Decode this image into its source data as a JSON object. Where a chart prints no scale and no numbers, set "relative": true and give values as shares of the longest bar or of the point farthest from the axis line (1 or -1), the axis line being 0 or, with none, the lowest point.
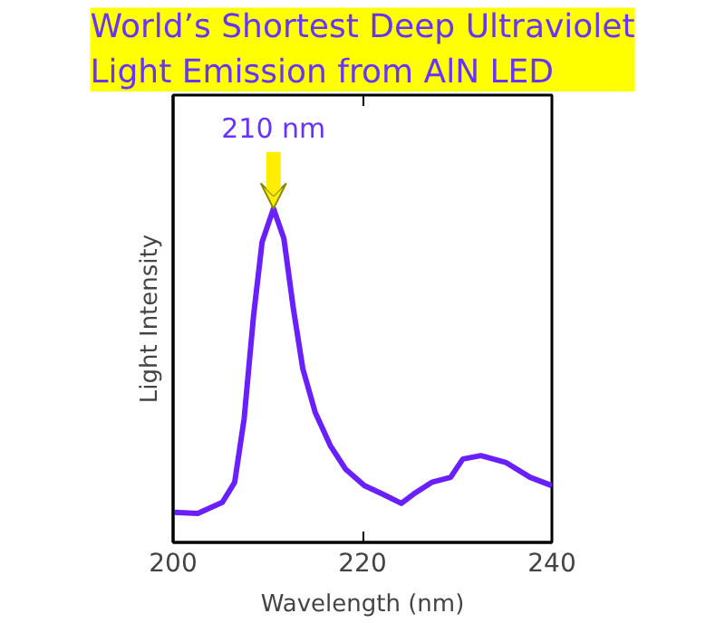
{
  "chart_data": {
    "type": "line",
    "title": "World’s Shortest Deep Ultraviolet Light Emission from AlN LED",
    "xlabel": "Wavelength (nm)",
    "ylabel": "Light Intensity",
    "relative": true,
    "x": [
      200,
      202.6,
      205.2,
      206.5,
      207.5,
      208.5,
      209.4,
      210.6,
      211.7,
      212.7,
      213.7,
      215.0,
      216.6,
      218.2,
      220.2,
      222.1,
      224.1,
      225.4,
      227.3,
      229.3,
      230.6,
      232.5,
      235.1,
      237.7,
      240
    ],
    "series": [
      {
        "color": "#6a1fff",
        "values": [
          0.09,
          0.087,
          0.12,
          0.18,
          0.37,
          0.68,
          0.9,
          1.0,
          0.91,
          0.7,
          0.52,
          0.39,
          0.29,
          0.22,
          0.17,
          0.145,
          0.117,
          0.145,
          0.18,
          0.195,
          0.25,
          0.26,
          0.24,
          0.195,
          0.17
        ]
      }
    ],
    "xlim": [
      200,
      240
    ],
    "xticks": [
      200,
      220,
      240
    ],
    "grid": false,
    "annotations": [
      {
        "text": "210 nm",
        "x": 210.6,
        "y": 1.0
      }
    ]
  }
}
